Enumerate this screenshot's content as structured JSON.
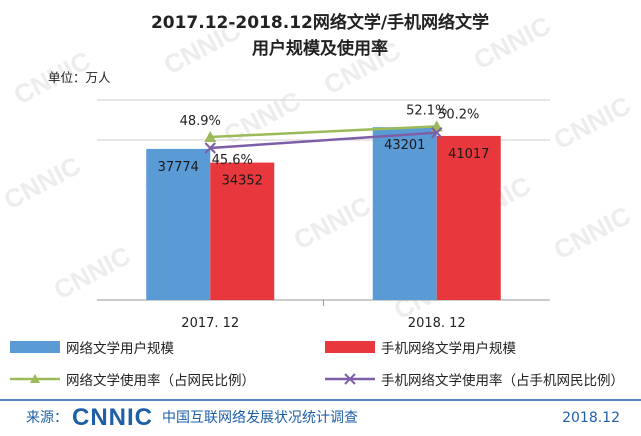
{
  "chart_data": {
    "type": "bar",
    "title_line1": "2017.12-2018.12网络文学/手机网络文学",
    "title_line2": "用户规模及使用率",
    "unit_label": "单位：万人",
    "categories": [
      "2017. 12",
      "2018. 12"
    ],
    "series": [
      {
        "name": "网络文学用户规模",
        "kind": "bar",
        "color": "#5b9bd5",
        "values": [
          37774,
          43201
        ]
      },
      {
        "name": "手机网络文学用户规模",
        "kind": "bar",
        "color": "#e8383d",
        "values": [
          34352,
          41017
        ]
      }
    ],
    "rate_series": [
      {
        "name": "网络文学使用率（占网民比例）",
        "kind": "line",
        "marker": "triangle",
        "color": "#9bbb59",
        "values": [
          48.9,
          52.1
        ],
        "labels": [
          "48.9%",
          "52.1%"
        ]
      },
      {
        "name": "手机网络文学使用率（占手机网民比例）",
        "kind": "line",
        "marker": "x",
        "color": "#7e5ea7",
        "values": [
          45.6,
          50.2
        ],
        "labels": [
          "45.6%",
          "50.2%"
        ]
      }
    ],
    "ylim": [
      0,
      50000
    ],
    "rate_ylim": [
      0,
      60
    ],
    "gridlines": [
      40000,
      50000
    ]
  },
  "footer": {
    "source_label": "来源：",
    "logo_text": "CNNIC",
    "org_name": "中国互联网络发展状况统计调查",
    "date": "2018.12"
  },
  "watermark": "CNNIC",
  "colors": {
    "title": "#222222",
    "footer_blue": "#1f5fa8",
    "grid": "#cfcfcf"
  }
}
